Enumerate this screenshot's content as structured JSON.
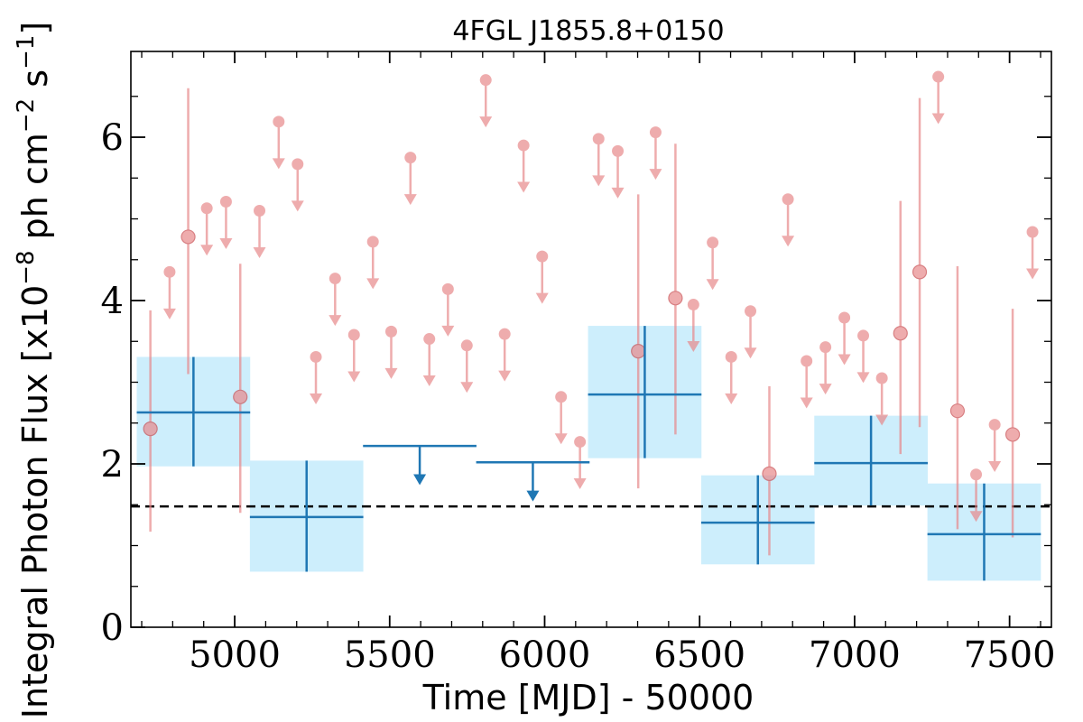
{
  "chart_data": {
    "type": "scatter",
    "title": "4FGL J1855.8+0150",
    "xlabel": "Time [MJD] - 50000",
    "ylabel": "Integral Photon Flux [x10$^{-8}$ ph cm$^{-2}$ s$^{-1}$]",
    "ylabel_parts": {
      "main": "Integral Photon Flux [x10",
      "exp1": "−8",
      "mid": " ph cm",
      "exp2": "−2",
      "mid2": " s",
      "exp3": "−1",
      "end": "]"
    },
    "xlim": [
      4665,
      7635
    ],
    "ylim": [
      0,
      7.05
    ],
    "xticks": [
      5000,
      5500,
      6000,
      6500,
      7000,
      7500
    ],
    "xtick_labels": [
      "5000",
      "5500",
      "6000",
      "6500",
      "7000",
      "7500"
    ],
    "yticks": [
      0,
      2,
      4,
      6
    ],
    "ytick_labels": [
      "0",
      "2",
      "4",
      "6"
    ],
    "reference_line": {
      "y": 1.48,
      "style": "dashed",
      "color": "#000000"
    },
    "colors": {
      "short_bin": "#e8898b",
      "long_bin": "#1f77b4",
      "long_bin_band": "#cdeefc"
    },
    "series": [
      {
        "name": "",
        "style": "long-bins",
        "detections": [
          {
            "x": 4867,
            "xerr": 183,
            "y": 2.63,
            "ylo": 1.97,
            "yhi": 3.31
          },
          {
            "x": 5232,
            "xerr": 183,
            "y": 1.35,
            "ylo": 0.68,
            "yhi": 2.04
          },
          {
            "x": 6323,
            "xerr": 183,
            "y": 2.85,
            "ylo": 2.07,
            "yhi": 3.69
          },
          {
            "x": 6688,
            "xerr": 183,
            "y": 1.28,
            "ylo": 0.77,
            "yhi": 1.86
          },
          {
            "x": 7053,
            "xerr": 183,
            "y": 2.01,
            "ylo": 1.49,
            "yhi": 2.59
          },
          {
            "x": 7418,
            "xerr": 183,
            "y": 1.14,
            "ylo": 0.57,
            "yhi": 1.76
          }
        ],
        "upper_limits": [
          {
            "x": 5597,
            "xerr": 183,
            "y": 2.22
          },
          {
            "x": 5962,
            "xerr": 183,
            "y": 2.02
          }
        ]
      },
      {
        "name": "",
        "style": "short-bins",
        "detections": [
          {
            "x": 4728,
            "y": 2.43,
            "ylo": 1.17,
            "yhi": 3.88
          },
          {
            "x": 4850,
            "y": 4.78,
            "ylo": 3.1,
            "yhi": 6.6
          },
          {
            "x": 5018,
            "y": 2.82,
            "ylo": 1.4,
            "yhi": 4.45
          },
          {
            "x": 6302,
            "y": 3.38,
            "ylo": 1.7,
            "yhi": 5.3
          },
          {
            "x": 6422,
            "y": 4.03,
            "ylo": 2.36,
            "yhi": 5.92
          },
          {
            "x": 6725,
            "y": 1.88,
            "ylo": 0.88,
            "yhi": 2.95
          },
          {
            "x": 7148,
            "y": 3.6,
            "ylo": 2.12,
            "yhi": 5.22
          },
          {
            "x": 7210,
            "y": 4.35,
            "ylo": 2.45,
            "yhi": 6.48
          },
          {
            "x": 7332,
            "y": 2.65,
            "ylo": 1.2,
            "yhi": 4.42
          },
          {
            "x": 7510,
            "y": 2.36,
            "ylo": 1.1,
            "yhi": 3.9
          }
        ],
        "upper_limits": [
          {
            "x": 4790,
            "y": 4.35
          },
          {
            "x": 4910,
            "y": 5.13
          },
          {
            "x": 4972,
            "y": 5.21
          },
          {
            "x": 5080,
            "y": 5.1
          },
          {
            "x": 5142,
            "y": 6.19
          },
          {
            "x": 5203,
            "y": 5.67
          },
          {
            "x": 5262,
            "y": 3.31
          },
          {
            "x": 5324,
            "y": 4.27
          },
          {
            "x": 5385,
            "y": 3.58
          },
          {
            "x": 5446,
            "y": 4.72
          },
          {
            "x": 5505,
            "y": 3.62
          },
          {
            "x": 5567,
            "y": 5.75
          },
          {
            "x": 5628,
            "y": 3.53
          },
          {
            "x": 5688,
            "y": 4.14
          },
          {
            "x": 5749,
            "y": 3.45
          },
          {
            "x": 5810,
            "y": 6.7
          },
          {
            "x": 5871,
            "y": 3.59
          },
          {
            "x": 5932,
            "y": 5.9
          },
          {
            "x": 5992,
            "y": 4.54
          },
          {
            "x": 6053,
            "y": 2.82
          },
          {
            "x": 6114,
            "y": 2.27
          },
          {
            "x": 6174,
            "y": 5.98
          },
          {
            "x": 6236,
            "y": 5.83
          },
          {
            "x": 6358,
            "y": 6.06
          },
          {
            "x": 6480,
            "y": 3.95
          },
          {
            "x": 6542,
            "y": 4.71
          },
          {
            "x": 6602,
            "y": 3.31
          },
          {
            "x": 6664,
            "y": 3.87
          },
          {
            "x": 6785,
            "y": 5.24
          },
          {
            "x": 6845,
            "y": 3.26
          },
          {
            "x": 6906,
            "y": 3.43
          },
          {
            "x": 6967,
            "y": 3.79
          },
          {
            "x": 7028,
            "y": 3.57
          },
          {
            "x": 7088,
            "y": 3.05
          },
          {
            "x": 7270,
            "y": 6.74
          },
          {
            "x": 7392,
            "y": 1.87
          },
          {
            "x": 7452,
            "y": 2.48
          },
          {
            "x": 7574,
            "y": 4.84
          }
        ]
      }
    ]
  }
}
